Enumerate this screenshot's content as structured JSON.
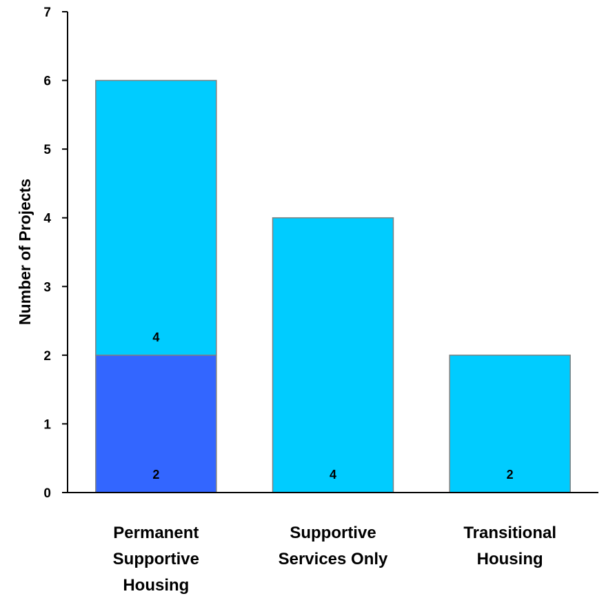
{
  "chart_data": {
    "type": "bar",
    "stacked": true,
    "title": "",
    "xlabel": "",
    "ylabel": "Number of Projects",
    "ylim": [
      0,
      7
    ],
    "yticks": [
      0,
      1,
      2,
      3,
      4,
      5,
      6,
      7
    ],
    "grid": false,
    "legend": "none",
    "categories": [
      [
        "Permanent",
        "Supportive",
        "Housing"
      ],
      [
        "Supportive",
        "Services Only"
      ],
      [
        "Transitional",
        "Housing"
      ]
    ],
    "series": [
      {
        "color": "#3366ff",
        "values": [
          2,
          0,
          0
        ],
        "labels": [
          "2",
          "",
          ""
        ]
      },
      {
        "color": "#00ccff",
        "values": [
          4,
          4,
          2
        ],
        "labels": [
          "4",
          "4",
          "2"
        ]
      }
    ],
    "bar_edge_color": "#808080",
    "axis_color": "#000000"
  }
}
